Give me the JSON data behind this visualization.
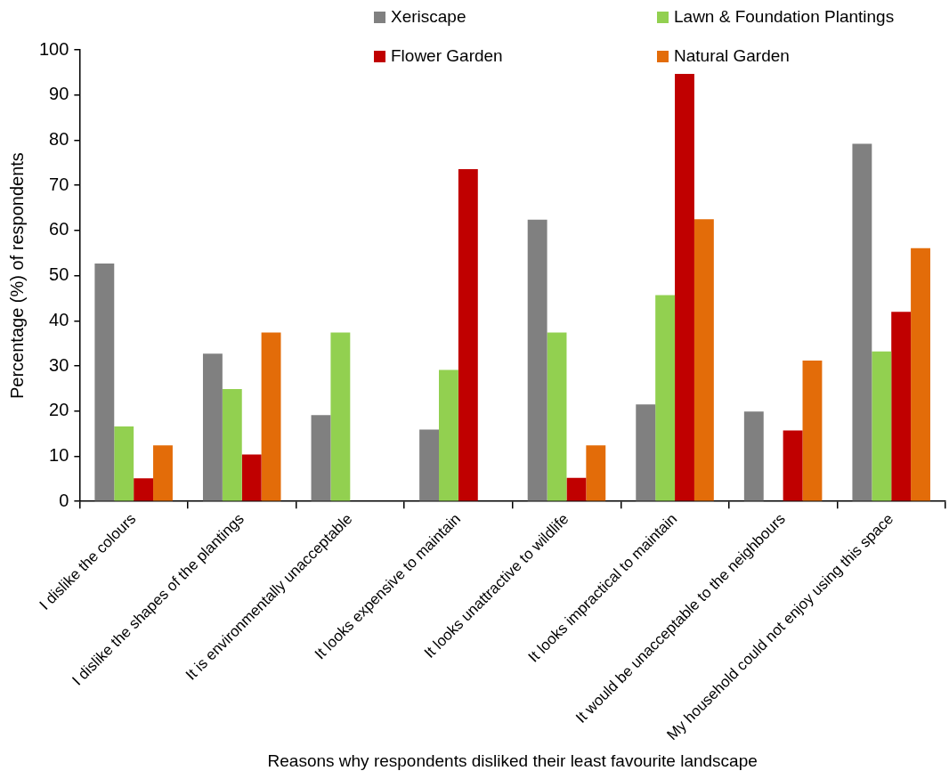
{
  "chart_data": {
    "type": "bar",
    "xlabel": "Reasons why respondents disliked their least favourite landscape",
    "ylabel": "Percentage (%) of respondents",
    "categories": [
      "I dislike the colours",
      "I dislike the shapes of the plantings",
      "It is environmentally unacceptable",
      "It looks expensive to maintain",
      "It looks unattractive to wildlife",
      "It looks impractical to maintain",
      "It would be unacceptable to the neighbours",
      "My household could not enjoy using this space"
    ],
    "series": [
      {
        "name": "Xeriscape",
        "color": "#808080",
        "values": [
          52.7,
          32.7,
          19.1,
          15.9,
          62.4,
          21.5,
          19.9,
          79.2
        ]
      },
      {
        "name": "Lawn & Foundation Plantings",
        "color": "#92d050",
        "values": [
          16.6,
          24.9,
          37.4,
          29.1,
          37.4,
          45.7,
          null,
          33.2
        ]
      },
      {
        "name": "Flower Garden",
        "color": "#c00000",
        "values": [
          5.1,
          10.4,
          null,
          73.6,
          5.2,
          94.7,
          15.7,
          42.0
        ]
      },
      {
        "name": "Natural Garden",
        "color": "#e36c09",
        "values": [
          12.4,
          37.4,
          null,
          null,
          12.4,
          62.5,
          31.2,
          56.1
        ]
      }
    ],
    "ylim": [
      0,
      100
    ],
    "yticks": [
      0,
      10,
      20,
      30,
      40,
      50,
      60,
      70,
      80,
      90,
      100
    ],
    "grid": false,
    "legend": "top right"
  }
}
